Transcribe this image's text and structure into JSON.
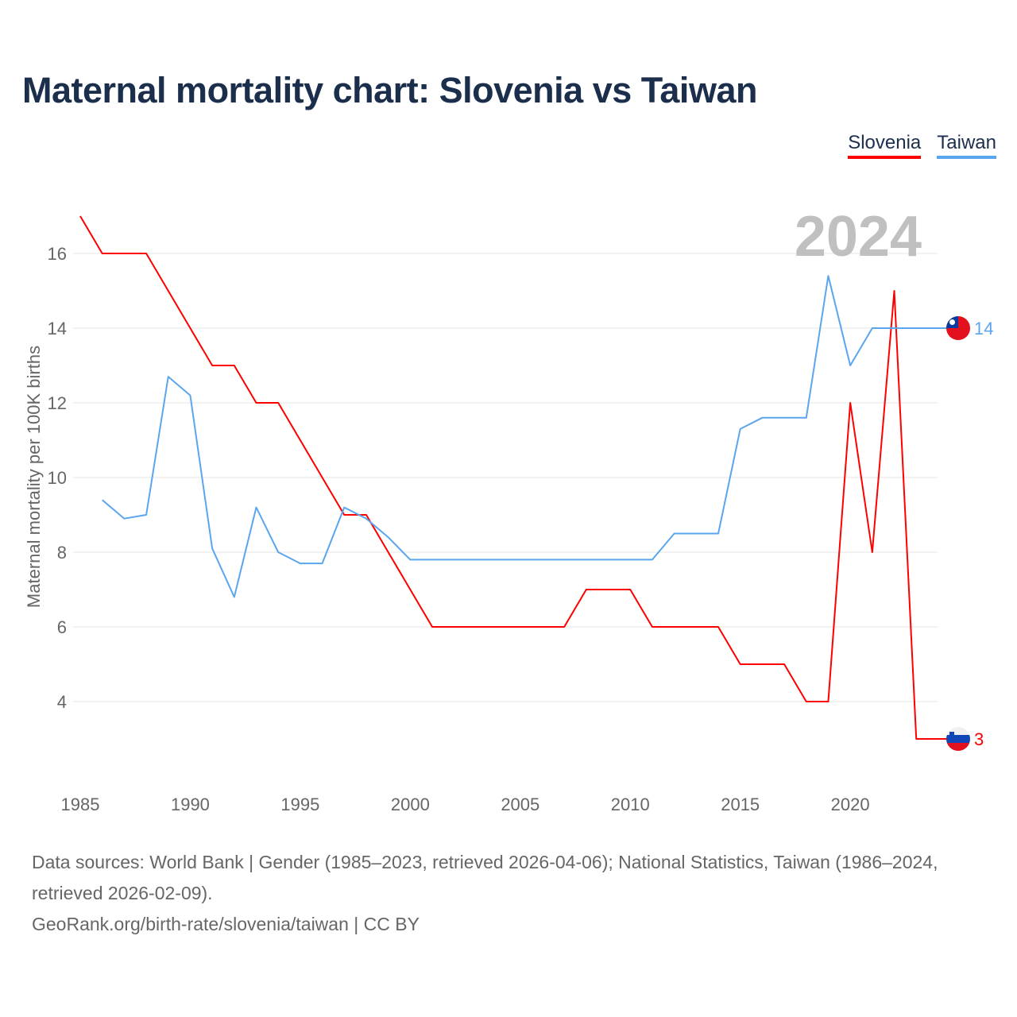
{
  "title": "Maternal mortality chart: Slovenia vs Taiwan",
  "legend": [
    {
      "label": "Slovenia",
      "color": "#ff0000"
    },
    {
      "label": "Taiwan",
      "color": "#5aa6ee"
    }
  ],
  "year_label": "2024",
  "sources": {
    "line1": "Data sources: World Bank | Gender (1985–2023, retrieved 2026-04-06); National Statistics, Taiwan (1986–2024, retrieved 2026-02-09).",
    "line2": "GeoRank.org/birth-rate/slovenia/taiwan | CC BY"
  },
  "chart_data": {
    "type": "line",
    "title": "Maternal mortality chart: Slovenia vs Taiwan",
    "xlabel": "",
    "ylabel": "Maternal mortality per 100K births",
    "xlim": [
      1985,
      2024
    ],
    "ylim": [
      2,
      17
    ],
    "xticks": [
      1985,
      1990,
      1995,
      2000,
      2005,
      2010,
      2015,
      2020
    ],
    "yticks": [
      4,
      6,
      8,
      10,
      12,
      14,
      16
    ],
    "grid": true,
    "legend_position": "top-right",
    "series": [
      {
        "name": "Slovenia",
        "color": "#ff0000",
        "end_label": "3",
        "x": [
          1985,
          1986,
          1987,
          1988,
          1989,
          1990,
          1991,
          1992,
          1993,
          1994,
          1995,
          1996,
          1997,
          1998,
          1999,
          2000,
          2001,
          2002,
          2003,
          2004,
          2005,
          2006,
          2007,
          2008,
          2009,
          2010,
          2011,
          2012,
          2013,
          2014,
          2015,
          2016,
          2017,
          2018,
          2019,
          2020,
          2021,
          2022,
          2023
        ],
        "y": [
          17,
          16,
          16,
          16,
          15,
          14,
          13,
          13,
          12,
          12,
          11,
          10,
          9,
          9,
          8,
          7,
          6,
          6,
          6,
          6,
          6,
          6,
          6,
          7,
          7,
          7,
          6,
          6,
          6,
          6,
          5,
          5,
          5,
          4,
          4,
          12,
          8,
          15,
          3
        ]
      },
      {
        "name": "Taiwan",
        "color": "#5aa6ee",
        "end_label": "14",
        "x": [
          1986,
          1987,
          1988,
          1989,
          1990,
          1991,
          1992,
          1993,
          1994,
          1995,
          1996,
          1997,
          1998,
          1999,
          2000,
          2001,
          2002,
          2003,
          2004,
          2005,
          2006,
          2007,
          2008,
          2009,
          2010,
          2011,
          2012,
          2013,
          2014,
          2015,
          2016,
          2017,
          2018,
          2019,
          2020,
          2021,
          2022,
          2023,
          2024
        ],
        "y": [
          9.4,
          8.9,
          9.0,
          12.7,
          12.2,
          8.1,
          6.8,
          9.2,
          8.0,
          7.7,
          7.7,
          9.2,
          8.9,
          8.4,
          7.8,
          7.8,
          7.8,
          7.8,
          7.8,
          7.8,
          7.8,
          7.8,
          7.8,
          7.8,
          7.8,
          7.8,
          8.5,
          8.5,
          8.5,
          11.3,
          11.6,
          11.6,
          11.6,
          15.4,
          13.0,
          14,
          14,
          14,
          14
        ]
      }
    ]
  }
}
